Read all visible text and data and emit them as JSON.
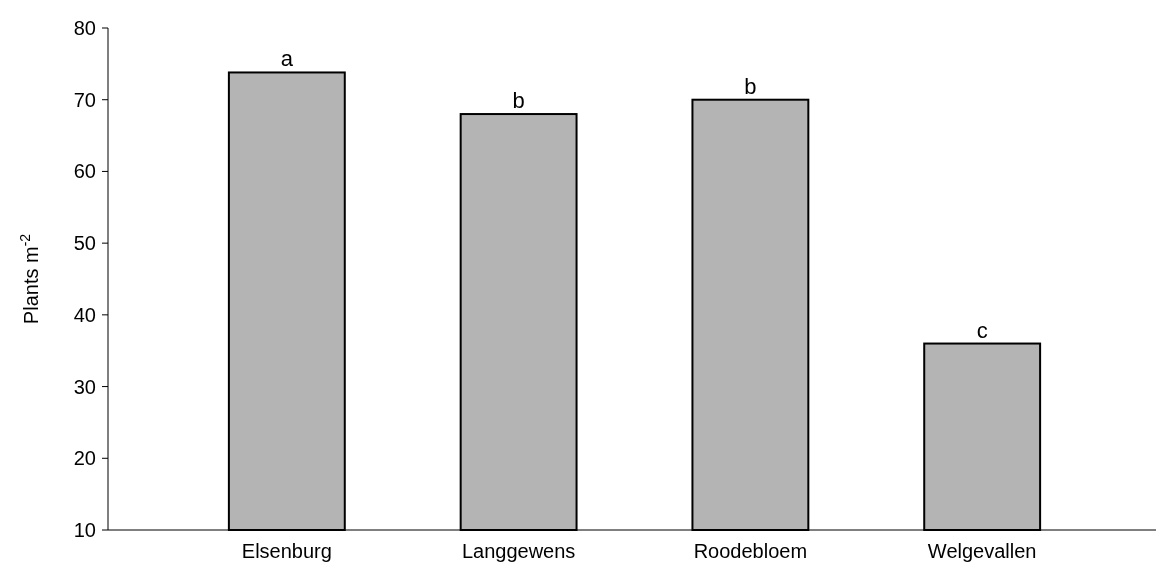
{
  "chart_data": {
    "type": "bar",
    "ylabel": "Plants m$^{-2}$",
    "categories": [
      "Elsenburg",
      "Langgewens",
      "Roodebloem",
      "Welgevallen"
    ],
    "values": [
      73.8,
      68,
      70,
      36
    ],
    "color": "#b4b4b4",
    "ylim": [
      10,
      80
    ],
    "yticks": [
      10,
      20,
      30,
      40,
      50,
      60,
      70,
      80
    ],
    "grid": false,
    "annotations": [
      {
        "text": "a",
        "x": "Elsenburg",
        "y": 73.8
      },
      {
        "text": "b",
        "x": "Langgewens",
        "y": 68
      },
      {
        "text": "b",
        "x": "Roodebloem",
        "y": 70
      },
      {
        "text": "c",
        "x": "Welgevallen",
        "y": 36
      }
    ]
  }
}
